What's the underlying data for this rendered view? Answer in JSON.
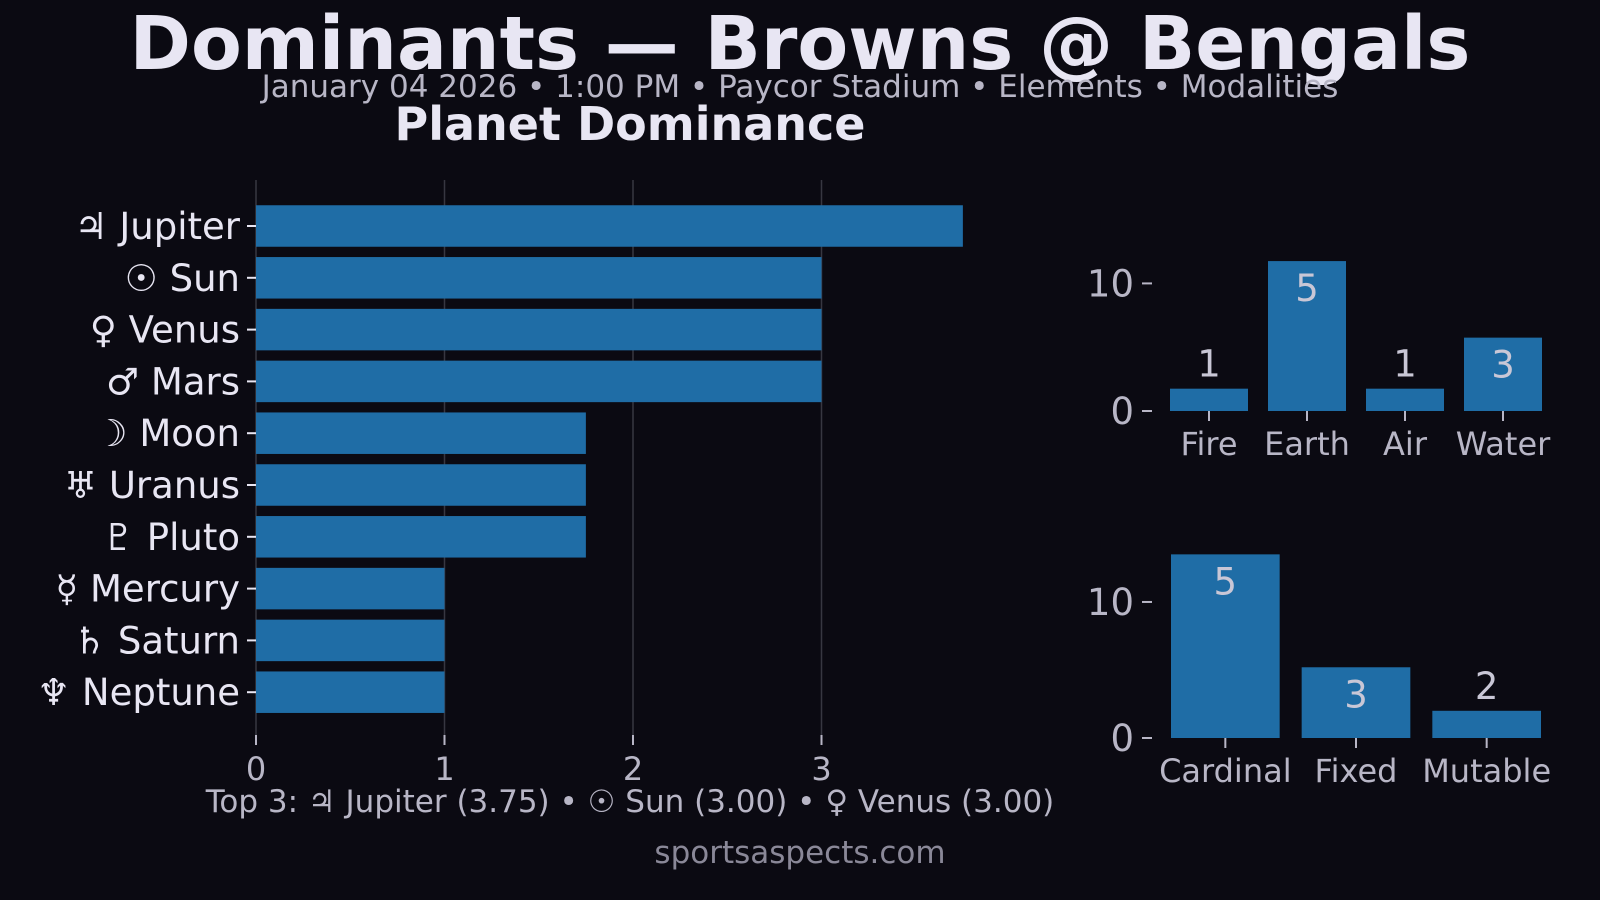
{
  "header": {
    "title": "Dominants — Browns @ Bengals",
    "subtitle": "January 04 2026 • 1:00 PM • Paycor Stadium • Elements • Modalities"
  },
  "footer": {
    "top3": "Top 3: ♃ Jupiter (3.75) • ☉ Sun (3.00) • ♀ Venus (3.00)",
    "site": "sportsaspects.com"
  },
  "colors": {
    "background": "#0b0a12",
    "bar": "#1f6da6",
    "text": "#e8e6f3",
    "muted": "#b8b6c6",
    "grid": "#4a4a56"
  },
  "chart_data": [
    {
      "type": "bar",
      "orientation": "horizontal",
      "title": "Planet Dominance",
      "categories": [
        "♃ Jupiter",
        "☉ Sun",
        "♀ Venus",
        "♂ Mars",
        "☽ Moon",
        "♅ Uranus",
        "♇ Pluto",
        "☿ Mercury",
        "♄ Saturn",
        "♆ Neptune"
      ],
      "values": [
        3.75,
        3.0,
        3.0,
        3.0,
        1.75,
        1.75,
        1.75,
        1.0,
        1.0,
        1.0
      ],
      "xlim": [
        0,
        4.0
      ],
      "xticks": [
        "0",
        "1",
        "2",
        "3"
      ],
      "grid": "vertical"
    },
    {
      "type": "bar",
      "title": "",
      "categories": [
        "Fire",
        "Earth",
        "Air",
        "Water"
      ],
      "values": [
        1.75,
        11.75,
        1.75,
        5.75
      ],
      "labels": [
        "1",
        "5",
        "1",
        "3"
      ],
      "ylim": [
        0,
        14.5
      ],
      "yticks": [
        "0",
        "10"
      ]
    },
    {
      "type": "bar",
      "title": "",
      "categories": [
        "Cardinal",
        "Fixed",
        "Mutable"
      ],
      "values": [
        13.5,
        5.2,
        2.0
      ],
      "labels": [
        "5",
        "3",
        "2"
      ],
      "ylim": [
        0,
        13.6
      ],
      "yticks": [
        "0",
        "10"
      ]
    }
  ]
}
